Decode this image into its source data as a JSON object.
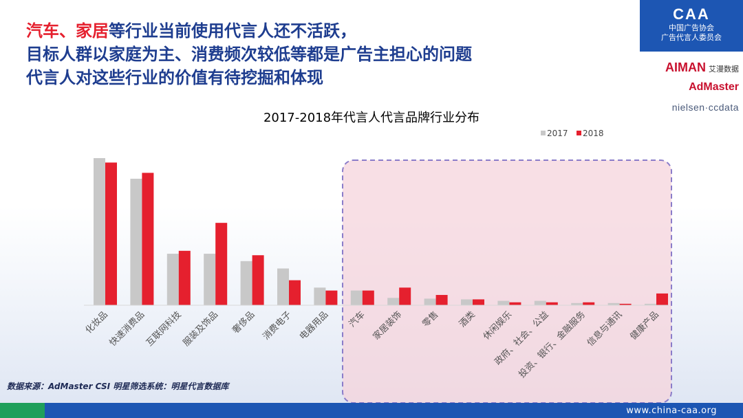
{
  "headline": {
    "line1_highlight": "汽车、家居",
    "line1_rest": "等行业当前使用代言人还不活跃，",
    "line2": "目标人群以家庭为主、消费频次较低等都是广告主担心的问题",
    "line3": "代言人对这些行业的价值有待挖掘和体现"
  },
  "logo": {
    "mark": "CAA",
    "line1": "中国广告协会",
    "line2": "广告代言人委员会"
  },
  "partners": {
    "aiman": "AIMAN",
    "aiman_cn": "艾漫数据",
    "admaster": "AdMaster",
    "nielsen": "nielsen·ccdata"
  },
  "source": "数据来源：AdMaster CSI 明星筛选系统：明星代言数据库",
  "footer_url": "www.china-caa.org",
  "colors": {
    "series_2017": "#c8c8c8",
    "series_2018": "#e5202e",
    "title": "#1e3d8f",
    "highlight": "#e5202e",
    "brand": "#1d56b3"
  },
  "chart_data": {
    "type": "bar",
    "title": "2017-2018年代言人代言品牌行业分布",
    "legend_position": "top-right",
    "grid": false,
    "ylim": [
      0,
      100
    ],
    "categories": [
      "化妆品",
      "快速消费品",
      "互联网科技",
      "服装及饰品",
      "奢侈品",
      "消费电子",
      "电器用品",
      "汽车",
      "家居装饰",
      "零售",
      "酒类",
      "休闲娱乐",
      "政府、社会、公益",
      "投资、银行、金融服务",
      "信息与通讯",
      "健康产品"
    ],
    "series": [
      {
        "name": "2017",
        "values": [
          100,
          86,
          35,
          35,
          30,
          25,
          12,
          10,
          5,
          4.5,
          4,
          3,
          3,
          1.5,
          1.5,
          1
        ]
      },
      {
        "name": "2018",
        "values": [
          97,
          90,
          37,
          56,
          34,
          17,
          10,
          10,
          12,
          7,
          4,
          2,
          2,
          2,
          1,
          8
        ]
      }
    ],
    "highlight_region": {
      "from_category": "汽车",
      "to_category": "健康产品"
    }
  }
}
